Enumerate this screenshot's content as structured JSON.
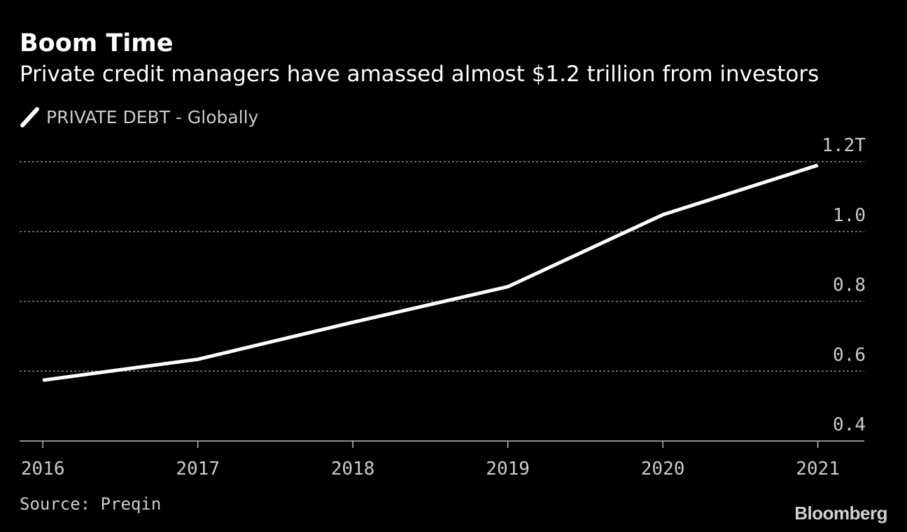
{
  "header": {
    "title": "Boom Time",
    "subtitle": "Private credit managers have amassed almost $1.2 trillion from investors"
  },
  "legend": {
    "label": "PRIVATE DEBT - Globally"
  },
  "footer": {
    "source": "Source: Preqin",
    "brand": "Bloomberg"
  },
  "colors": {
    "background": "#000000",
    "line": "#ffffff",
    "grid": "#888888",
    "text_muted": "#cccccc"
  },
  "chart_data": {
    "type": "line",
    "title": "Boom Time",
    "subtitle": "Private credit managers have amassed almost $1.2 trillion from investors",
    "xlabel": "",
    "ylabel": "",
    "x": [
      2016,
      2017,
      2018,
      2019,
      2020,
      2021
    ],
    "x_tick_labels": [
      "2016",
      "2017",
      "2018",
      "2019",
      "2020",
      "2021"
    ],
    "series": [
      {
        "name": "PRIVATE DEBT - Globally",
        "values": [
          0.574,
          0.634,
          0.74,
          0.842,
          1.048,
          1.19
        ]
      }
    ],
    "xlim": [
      2015.85,
      2021.3
    ],
    "ylim": [
      0.4,
      1.2
    ],
    "y_ticks": [
      0.4,
      0.6,
      0.8,
      1.0,
      1.2
    ],
    "y_tick_labels": [
      "0.4",
      "0.6",
      "0.8",
      "1.0",
      "1.2T"
    ],
    "y_axis_side": "right",
    "grid": "horizontal dotted",
    "legend_position": "top-left"
  }
}
